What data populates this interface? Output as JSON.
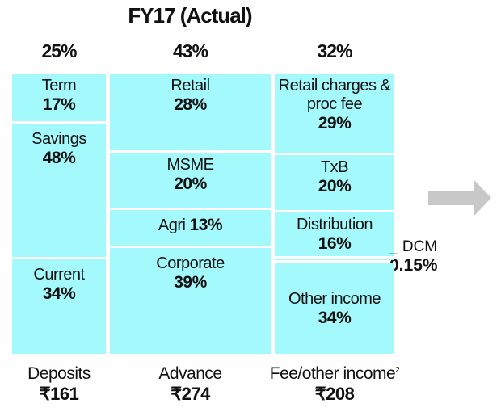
{
  "title": "FY17 (Actual)",
  "colors": {
    "block": "#a3f9fb",
    "arrow": "#c8c8c8"
  },
  "chart_data": {
    "type": "bar",
    "stacked": true,
    "title": "FY17 (Actual)",
    "columns": [
      {
        "name": "Deposits",
        "total": "₹161",
        "share": "25%",
        "share_value": 25,
        "segments": [
          {
            "label": "Term",
            "pct": "17%",
            "value": 17
          },
          {
            "label": "Savings",
            "pct": "48%",
            "value": 48
          },
          {
            "label": "Current",
            "pct": "34%",
            "value": 34
          }
        ]
      },
      {
        "name": "Advance",
        "total": "₹274",
        "share": "43%",
        "share_value": 43,
        "segments": [
          {
            "label": "Retail",
            "pct": "28%",
            "value": 28
          },
          {
            "label": "MSME",
            "pct": "20%",
            "value": 20
          },
          {
            "label": "Agri",
            "pct": "13%",
            "value": 13
          },
          {
            "label": "Corporate",
            "pct": "39%",
            "value": 39
          }
        ]
      },
      {
        "name": "Fee/other income",
        "name_sup": "2",
        "total": "₹208",
        "share": "32%",
        "share_value": 32,
        "segments": [
          {
            "label": "Retail charges & proc fee",
            "pct": "29%",
            "value": 29
          },
          {
            "label": "TxB",
            "pct": "20%",
            "value": 20
          },
          {
            "label": "Distribution",
            "pct": "16%",
            "value": 16
          },
          {
            "label": "DCM",
            "pct": "0.15%",
            "value": 0.15
          },
          {
            "label": "Other income",
            "pct": "34%",
            "value": 34
          }
        ]
      }
    ]
  }
}
